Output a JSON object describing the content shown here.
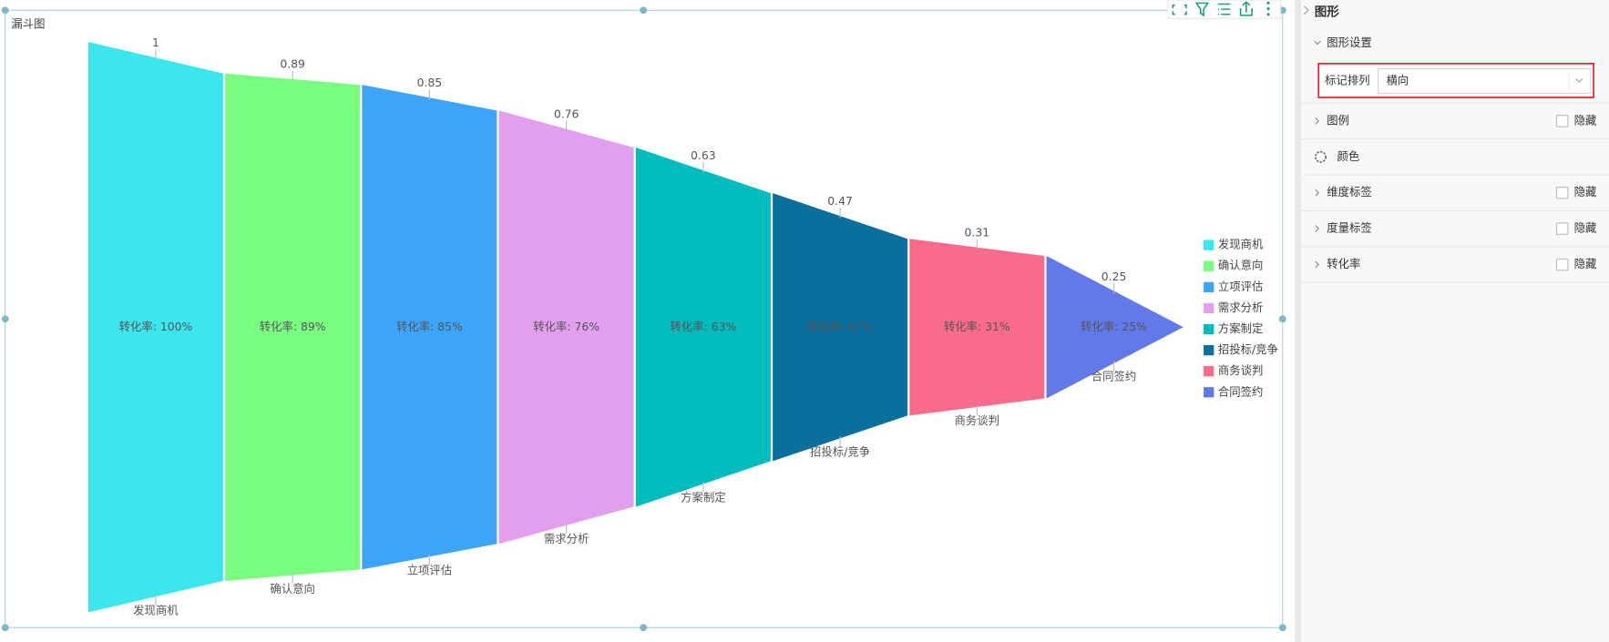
{
  "chart_data": {
    "type": "funnel",
    "title": "漏斗图",
    "categories": [
      "发现商机",
      "确认意向",
      "立项评估",
      "需求分析",
      "方案制定",
      "招投标/竞争",
      "商务谈判",
      "合同签约"
    ],
    "values": [
      1,
      0.89,
      0.85,
      0.76,
      0.63,
      0.47,
      0.31,
      0.25
    ],
    "value_labels": [
      "转化率: 100%",
      "转化率: 89%",
      "转化率: 85%",
      "转化率: 76%",
      "转化率: 63%",
      "转化率: 47%",
      "转化率: 31%",
      "转化率: 25%"
    ],
    "colors": [
      "#3be6ec",
      "#79fd81",
      "#3da5f9",
      "#e29fee",
      "#00bcbc",
      "#0a6f9d",
      "#f86b8a",
      "#6279e9"
    ],
    "legend": "right"
  },
  "panel": {
    "title": "图形",
    "section": "图形设置",
    "setting": {
      "label": "标记排列",
      "value": "横向"
    },
    "rows": [
      {
        "label": "图例",
        "option": "隐藏"
      },
      {
        "label": "颜色"
      },
      {
        "label": "维度标签",
        "option": "隐藏"
      },
      {
        "label": "度量标签",
        "option": "隐藏"
      },
      {
        "label": "转化率",
        "option": "隐藏"
      }
    ]
  }
}
